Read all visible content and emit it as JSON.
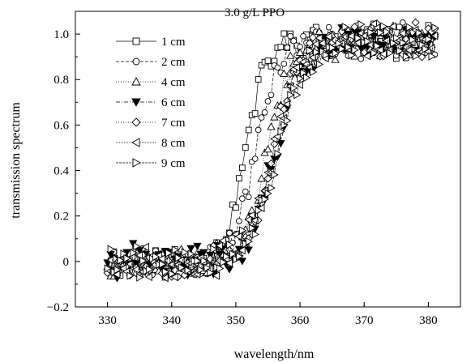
{
  "chart_data": {
    "type": "scatter",
    "annotation": "3.0 g/L PPO",
    "xlabel": "wavelength/nm",
    "ylabel": "transmission spectrum",
    "xlim": [
      325,
      385
    ],
    "ylim": [
      -0.2,
      1.1
    ],
    "xticks": [
      330,
      340,
      350,
      360,
      370,
      380
    ],
    "yticks": [
      -0.2,
      0.0,
      0.2,
      0.4,
      0.6,
      0.8,
      1.0
    ],
    "xtick_labels": [
      "330",
      "340",
      "350",
      "360",
      "370",
      "380"
    ],
    "ytick_labels": [
      "−0.2",
      "0",
      "0.2",
      "0.4",
      "0.6",
      "0.8",
      "1.0"
    ],
    "legend_position": "top-left",
    "x_sampling": {
      "start": 330,
      "end": 381,
      "step": 0.5
    },
    "series": [
      {
        "name": "1 cm",
        "marker": "square-open",
        "dash": "solid",
        "x_mid": 351.5,
        "width": 1.6,
        "seed": 11
      },
      {
        "name": "2 cm",
        "marker": "circle-open",
        "dash": "4,2",
        "x_mid": 353.0,
        "width": 1.7,
        "seed": 23
      },
      {
        "name": "4 cm",
        "marker": "triangle-up-open",
        "dash": "1,2",
        "x_mid": 355.0,
        "width": 2.0,
        "seed": 37
      },
      {
        "name": "6 cm",
        "marker": "triangle-down-filled",
        "dash": "5,2,1,2",
        "x_mid": 356.2,
        "width": 2.1,
        "seed": 41
      },
      {
        "name": "7 cm",
        "marker": "diamond-open",
        "dash": "1,2",
        "x_mid": 355.8,
        "width": 2.0,
        "seed": 53
      },
      {
        "name": "8 cm",
        "marker": "triangle-left-open",
        "dash": "1,1",
        "x_mid": 356.0,
        "width": 2.1,
        "seed": 67
      },
      {
        "name": "9 cm",
        "marker": "triangle-right-open",
        "dash": "3,1",
        "x_mid": 356.5,
        "width": 2.2,
        "seed": 79
      }
    ]
  }
}
